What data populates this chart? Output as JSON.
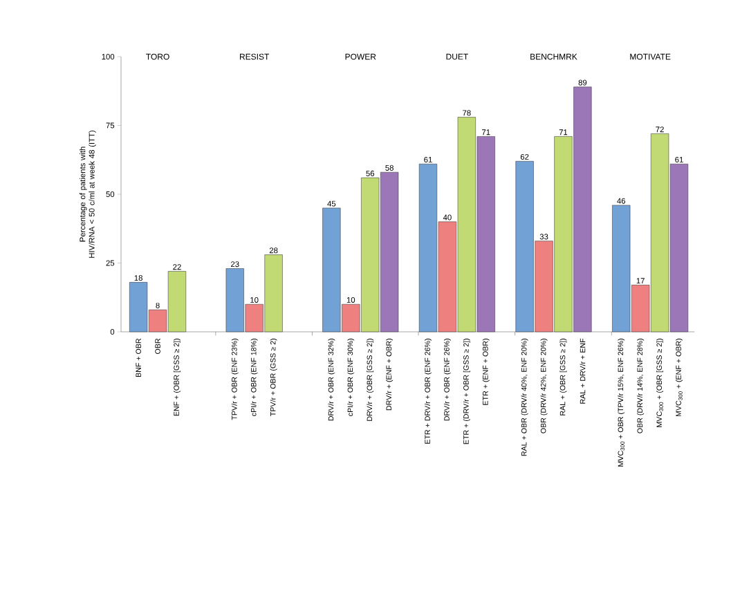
{
  "chart_data": {
    "type": "bar",
    "ylabel": "Percentage of patients with HIV/RNA < 50 c/ml at week 48 (ITT)",
    "categories": [
      "BNF + OBR",
      "OBR",
      "ENF + (OBR [GSS ≥ 2])",
      null,
      null,
      "TPV/r + OBR (ENF 23%)",
      "cPI/r + OBR (ENF 18%)",
      "TPV/r + OBR (GSS ≥ 2)",
      null,
      null,
      "DRV/r + OBR (ENF 32%)",
      "cPI/r + OBR (ENF 30%)",
      "DRV/r + (OBR [GSS ≥ 2])",
      "DRV/r + (ENF + OBR)",
      null,
      "ETR + DRV/r + OBR (ENF 26%)",
      "DRV/r + OBR (ENF 26%)",
      "ETR + (DRV/r + OBR [GSS ≥ 2])",
      "ETR + (ENF + OBR)",
      null,
      "RAL + OBR (DRV/r 40%, ENF 20%)",
      "OBR (DRV/r 42%, ENF 20%)",
      "RAL + (OBR [GSS ≥ 2])",
      "RAL + DRV/r + ENF",
      null,
      "MVC$_{300}$ + OBR (TPV/r 15%, ENF 26%)",
      "OBR (DRV/r 14%, ENF 28%)",
      "MVC$_{300}$ + (OBR [GSS ≥ 2])",
      "MVC$_{300}$ + (ENF + OBR)"
    ],
    "values": [
      18,
      8,
      22,
      null,
      null,
      23,
      10,
      28,
      null,
      null,
      45,
      10,
      56,
      58,
      null,
      61,
      40,
      78,
      71,
      null,
      62,
      33,
      71,
      89,
      null,
      46,
      17,
      72,
      61
    ],
    "colors": [
      "#72a1d6",
      "#ef8080",
      "#c2da74",
      null,
      null,
      "#72a1d6",
      "#ef8080",
      "#c2da74",
      null,
      null,
      "#72a1d6",
      "#ef8080",
      "#c2da74",
      "#9b77b8",
      null,
      "#72a1d6",
      "#ef8080",
      "#c2da74",
      "#9b77b8",
      null,
      "#72a1d6",
      "#ef8080",
      "#c2da74",
      "#9b77b8",
      null,
      "#72a1d6",
      "#ef8080",
      "#c2da74",
      "#9b77b8"
    ],
    "annotations": [
      "TORO",
      "RESIST",
      "POWER",
      "DUET",
      "BENCHMRK",
      "MOTIVATE"
    ],
    "ylim": [
      0,
      100
    ],
    "yticks": [
      0,
      25,
      50,
      75,
      100
    ],
    "data_labels": true
  }
}
